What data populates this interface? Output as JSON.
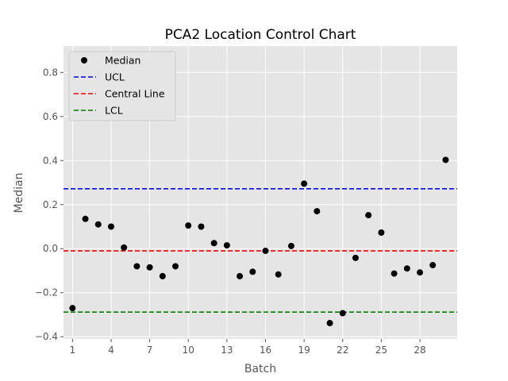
{
  "chart_data": {
    "type": "scatter",
    "title": "PCA2 Location Control Chart",
    "xlabel": "Batch",
    "ylabel": "Median",
    "xlim": [
      0.3,
      30.9
    ],
    "ylim": [
      -0.41,
      0.92
    ],
    "xticks": [
      1,
      4,
      7,
      10,
      13,
      16,
      19,
      22,
      25,
      28
    ],
    "yticks": [
      -0.4,
      -0.2,
      0.0,
      0.2,
      0.4,
      0.6,
      0.8
    ],
    "ytick_labels": [
      "−0.4",
      "−0.2",
      "0.0",
      "0.2",
      "0.4",
      "0.6",
      "0.8"
    ],
    "grid": true,
    "legend_position": "top-left",
    "series": [
      {
        "name": "Median",
        "kind": "scatter",
        "color": "#000000",
        "x": [
          1,
          2,
          3,
          4,
          5,
          6,
          7,
          8,
          9,
          10,
          11,
          12,
          13,
          14,
          15,
          16,
          17,
          18,
          19,
          20,
          21,
          22,
          23,
          24,
          25,
          26,
          27,
          28,
          29,
          30
        ],
        "y": [
          -0.27,
          0.135,
          0.11,
          0.1,
          0.005,
          -0.08,
          -0.085,
          -0.125,
          -0.08,
          0.105,
          0.1,
          0.025,
          0.015,
          -0.125,
          -0.105,
          -0.01,
          -0.117,
          0.012,
          0.295,
          0.17,
          -0.338,
          -0.293,
          -0.042,
          0.152,
          0.073,
          -0.113,
          -0.09,
          -0.108,
          -0.075,
          0.403
        ]
      },
      {
        "name": "UCL",
        "kind": "hline",
        "color": "#0000ff",
        "y": 0.272
      },
      {
        "name": "Central Line",
        "kind": "hline",
        "color": "#ff0000",
        "y": -0.01
      },
      {
        "name": "LCL",
        "kind": "hline",
        "color": "#008000",
        "y": -0.288
      }
    ],
    "colors": {
      "plot_background": "#e5e5e5",
      "grid": "#ffffff",
      "legend_background": "#e5e5e5",
      "legend_border": "#cccccc"
    }
  }
}
